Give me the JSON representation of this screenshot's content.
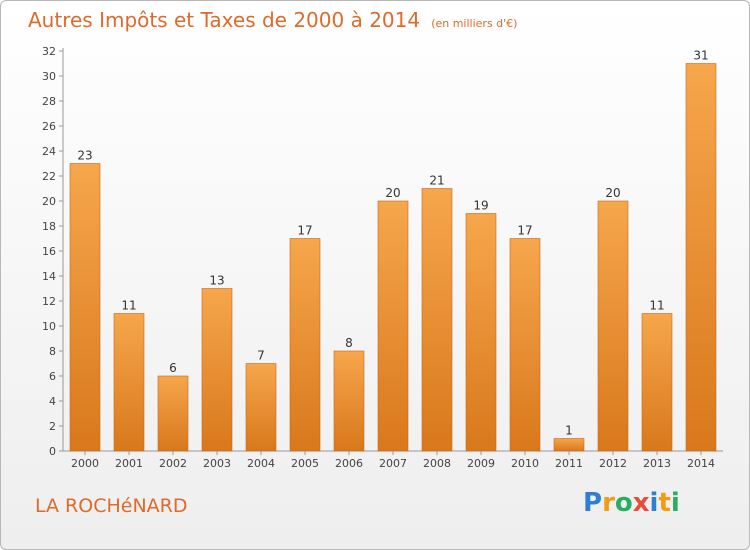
{
  "header": {
    "title": "Autres Impôts et Taxes de 2000 à 2014",
    "unit": "(en milliers d'€)"
  },
  "footer": {
    "place": "LA ROCHéNARD",
    "logo_letters": [
      "P",
      "r",
      "o",
      "x",
      "i",
      "t",
      "i"
    ],
    "logo_colors": [
      "#2f7fd1",
      "#f39c12",
      "#27ae60",
      "#e74c3c",
      "#2f7fd1",
      "#f39c12",
      "#27ae60"
    ]
  },
  "colors": {
    "bar_light": "#f6a64c",
    "bar_dark": "#d9781c",
    "title": "#e06a2a"
  },
  "chart_data": {
    "type": "bar",
    "title": "Autres Impôts et Taxes de 2000 à 2014",
    "subtitle": "(en milliers d'€)",
    "xlabel": "",
    "ylabel": "",
    "categories": [
      "2000",
      "2001",
      "2002",
      "2003",
      "2004",
      "2005",
      "2006",
      "2007",
      "2008",
      "2009",
      "2010",
      "2011",
      "2012",
      "2013",
      "2014"
    ],
    "values": [
      23,
      11,
      6,
      13,
      7,
      17,
      8,
      20,
      21,
      19,
      17,
      1,
      20,
      11,
      31
    ],
    "ylim": [
      0,
      32
    ],
    "yticks": [
      0,
      2,
      4,
      6,
      8,
      10,
      12,
      14,
      16,
      18,
      20,
      22,
      24,
      26,
      28,
      30,
      32
    ],
    "grid": false,
    "legend": "none"
  }
}
